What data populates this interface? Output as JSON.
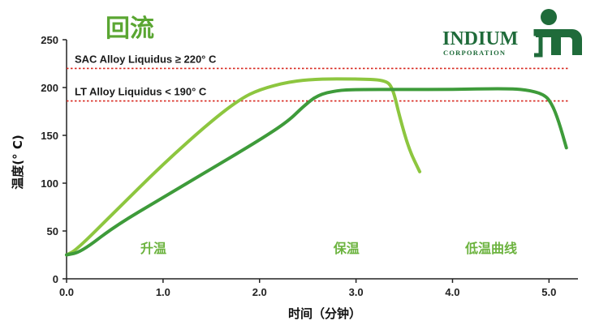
{
  "chart_data": {
    "type": "line",
    "title": "回流",
    "xlabel": "时间（分钟）",
    "ylabel": "温度(° C)",
    "xlim": [
      0,
      5.3
    ],
    "ylim": [
      0,
      250
    ],
    "x_ticks": [
      "0.0",
      "1.0",
      "2.0",
      "3.0",
      "4.0",
      "5.0"
    ],
    "y_ticks": [
      "0",
      "50",
      "100",
      "150",
      "200",
      "250"
    ],
    "grid": false,
    "series": [
      {
        "color": "#8dc63f",
        "x": [
          0,
          0.1,
          0.5,
          1.0,
          1.5,
          1.8,
          2.0,
          2.3,
          2.6,
          3.0,
          3.3,
          3.38,
          3.45,
          3.55,
          3.66
        ],
        "y": [
          25,
          30,
          70,
          120,
          165,
          188,
          198,
          206,
          209,
          209,
          208,
          200,
          170,
          135,
          112
        ]
      },
      {
        "color": "#3e9b3a",
        "x": [
          0,
          0.15,
          0.5,
          1.0,
          1.5,
          2.0,
          2.3,
          2.45,
          2.6,
          2.8,
          3.0,
          3.5,
          4.0,
          4.5,
          4.75,
          4.95,
          5.03,
          5.1,
          5.18
        ],
        "y": [
          25,
          28,
          55,
          85,
          115,
          145,
          165,
          180,
          192,
          197,
          198,
          198,
          198,
          199,
          198,
          193,
          183,
          165,
          137
        ]
      }
    ],
    "reference_lines": [
      {
        "y": 220,
        "label": "SAC Alloy Liquidus ≥ 220° C",
        "color": "#d7261e"
      },
      {
        "y": 186,
        "label": "LT Alloy Liquidus < 190° C",
        "color": "#d7261e"
      }
    ],
    "annotations": [
      {
        "text": "升温",
        "x": 0.9,
        "y": 32
      },
      {
        "text": "保温",
        "x": 2.9,
        "y": 32
      },
      {
        "text": "低温曲线",
        "x": 4.4,
        "y": 32
      }
    ]
  },
  "logo": {
    "name": "INDIUM",
    "sub": "CORPORATION"
  }
}
